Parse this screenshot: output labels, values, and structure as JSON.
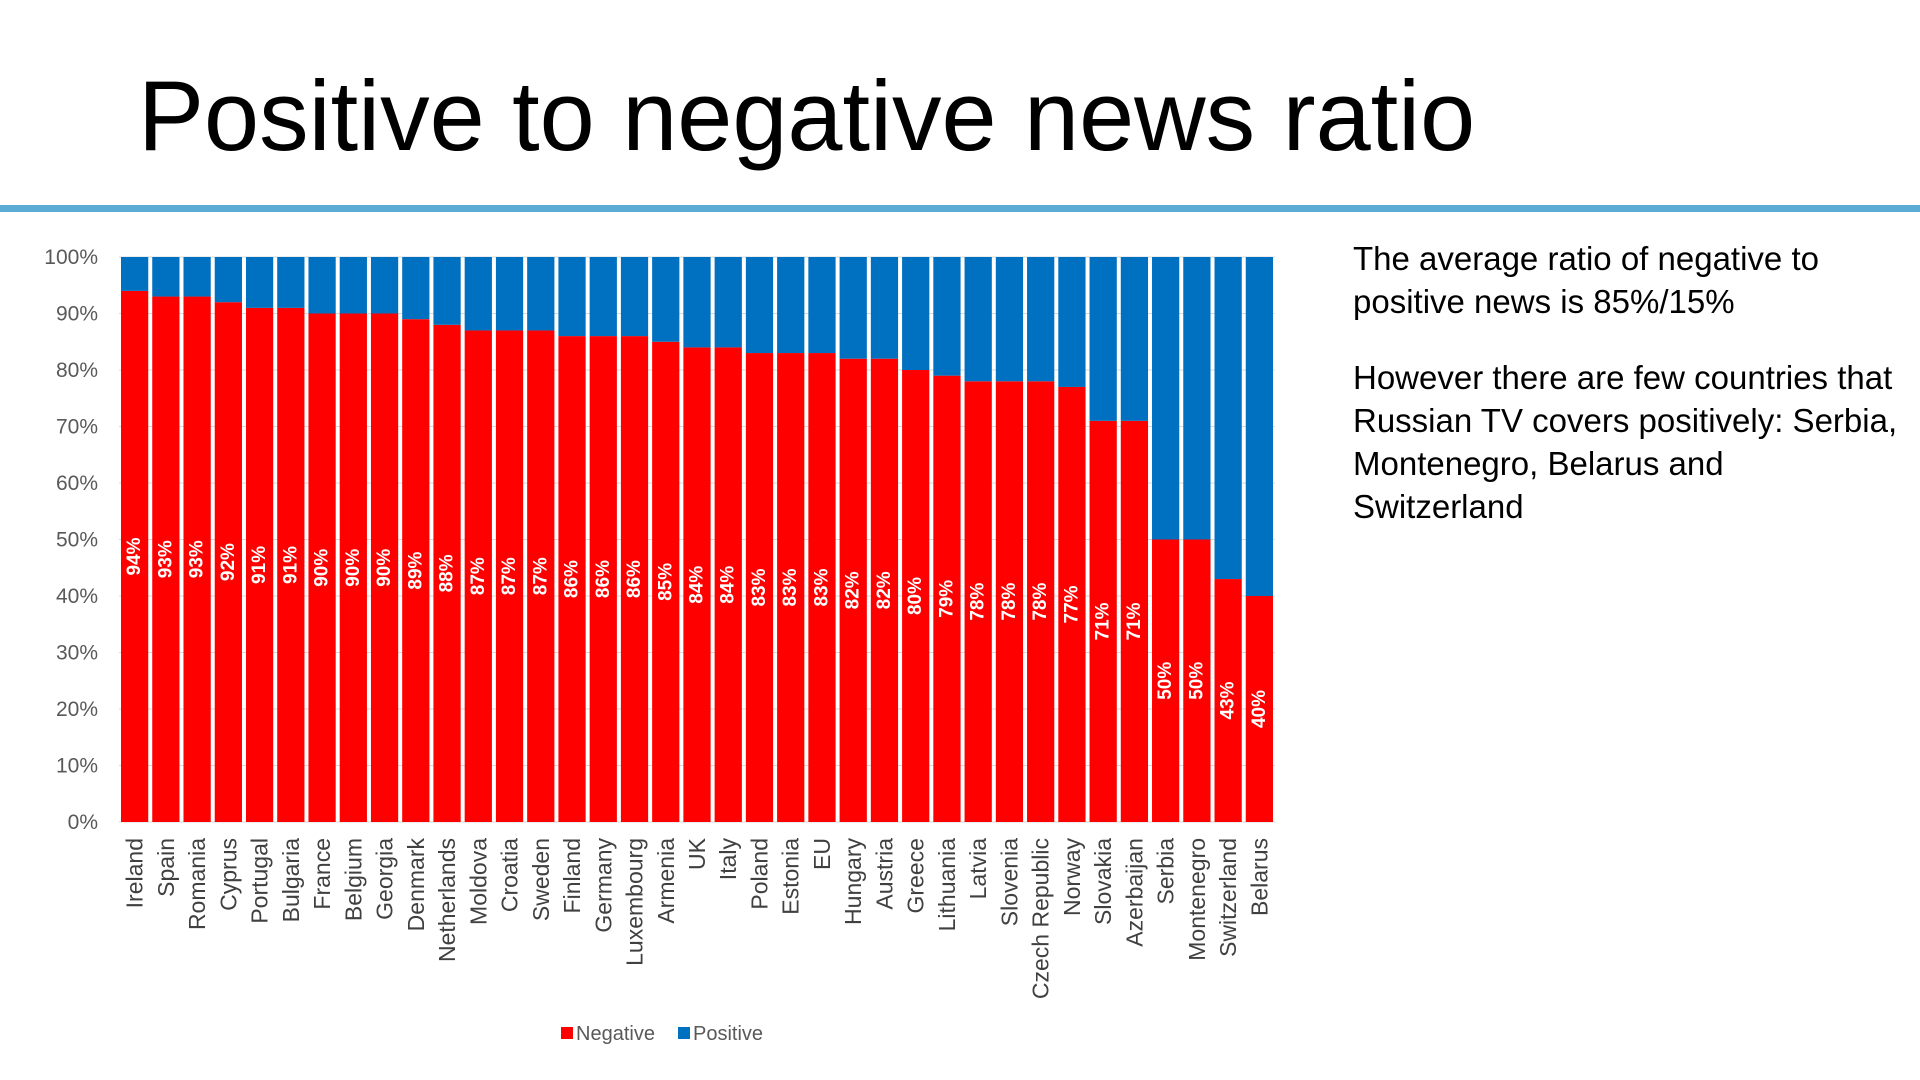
{
  "slide": {
    "title": "Positive to negative news ratio",
    "notes": [
      "The average ratio of negative to positive news is 85%/15%",
      "However there are few countries that Russian TV covers positively: Serbia, Montenegro, Belarus and Switzerland"
    ]
  },
  "chart_data": {
    "type": "bar",
    "stacked": "100%",
    "title": "",
    "xlabel": "",
    "ylabel": "",
    "ylim": [
      0,
      100
    ],
    "yticks": [
      "0%",
      "10%",
      "20%",
      "30%",
      "40%",
      "50%",
      "60%",
      "70%",
      "80%",
      "90%",
      "100%"
    ],
    "grid": true,
    "legend_position": "bottom",
    "categories": [
      "Ireland",
      "Spain",
      "Romania",
      "Cyprus",
      "Portugal",
      "Bulgaria",
      "France",
      "Belgium",
      "Georgia",
      "Denmark",
      "Netherlands",
      "Moldova",
      "Croatia",
      "Sweden",
      "Finland",
      "Germany",
      "Luxembourg",
      "Armenia",
      "UK",
      "Italy",
      "Poland",
      "Estonia",
      "EU",
      "Hungary",
      "Austria",
      "Greece",
      "Lithuania",
      "Latvia",
      "Slovenia",
      "Czech Republic",
      "Norway",
      "Slovakia",
      "Azerbaijan",
      "Serbia",
      "Montenegro",
      "Switzerland",
      "Belarus"
    ],
    "series": [
      {
        "name": "Negative",
        "color": "#ff0000",
        "values": [
          94,
          93,
          93,
          92,
          91,
          91,
          90,
          90,
          90,
          89,
          88,
          87,
          87,
          87,
          86,
          86,
          86,
          85,
          84,
          84,
          83,
          83,
          83,
          82,
          82,
          80,
          79,
          78,
          78,
          78,
          77,
          71,
          71,
          50,
          50,
          43,
          40
        ],
        "labels": [
          "94%",
          "93%",
          "93%",
          "92%",
          "91%",
          "91%",
          "90%",
          "90%",
          "90%",
          "89%",
          "88%",
          "87%",
          "87%",
          "87%",
          "86%",
          "86%",
          "86%",
          "85%",
          "84%",
          "84%",
          "83%",
          "83%",
          "83%",
          "82%",
          "82%",
          "80%",
          "79%",
          "78%",
          "78%",
          "78%",
          "77%",
          "71%",
          "71%",
          "50%",
          "50%",
          "43%",
          "40%"
        ]
      },
      {
        "name": "Positive",
        "color": "#0070c0",
        "values": [
          6,
          7,
          7,
          8,
          9,
          9,
          10,
          10,
          10,
          11,
          12,
          13,
          13,
          13,
          14,
          14,
          14,
          15,
          16,
          16,
          17,
          17,
          17,
          18,
          18,
          20,
          21,
          22,
          22,
          22,
          23,
          29,
          29,
          50,
          50,
          57,
          60
        ]
      }
    ]
  }
}
